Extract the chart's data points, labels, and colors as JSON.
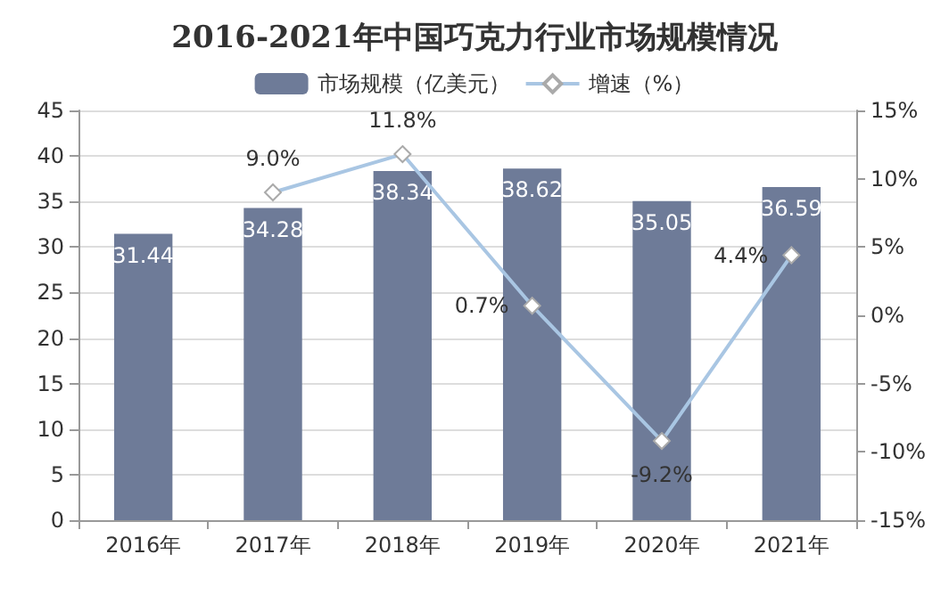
{
  "chart_data": {
    "type": "bar",
    "title": "2016-2021年中国巧克力行业市场规模情况",
    "categories": [
      "2016年",
      "2017年",
      "2018年",
      "2019年",
      "2020年",
      "2021年"
    ],
    "series": [
      {
        "name": "市场规模（亿美元）",
        "color": "#6e7b98",
        "values": [
          31.44,
          34.28,
          38.34,
          38.62,
          35.05,
          36.59
        ],
        "value_labels": [
          "31.44",
          "34.28",
          "38.34",
          "38.62",
          "35.05",
          "36.59"
        ]
      },
      {
        "name": "增速（%）",
        "type": "line",
        "axis": "y2",
        "color": "#a9c6e3",
        "marker": "diamond",
        "values": [
          null,
          9.0,
          11.8,
          0.7,
          -9.2,
          4.4
        ],
        "value_labels": [
          null,
          "9.0%",
          "11.8%",
          "0.7%",
          "-9.2%",
          "4.4%"
        ]
      }
    ],
    "ylim": [
      0,
      45
    ],
    "yticks": [
      0,
      5,
      10,
      15,
      20,
      25,
      30,
      35,
      40,
      45
    ],
    "y2lim": [
      -15,
      15
    ],
    "y2ticks": [
      {
        "value": -15,
        "label": "-15%"
      },
      {
        "value": -10,
        "label": "-10%"
      },
      {
        "value": -5,
        "label": "-5%"
      },
      {
        "value": 0,
        "label": "0%"
      },
      {
        "value": 5,
        "label": "5%"
      },
      {
        "value": 10,
        "label": "10%"
      },
      {
        "value": 15,
        "label": "15%"
      }
    ],
    "grid": "y",
    "legend": "top"
  }
}
